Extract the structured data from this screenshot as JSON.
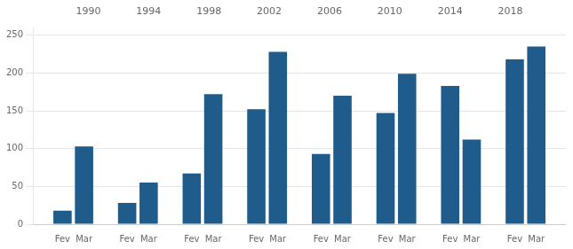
{
  "chart_data": {
    "type": "bar",
    "categories": [
      "Fev",
      "Mar",
      "Fev",
      "Mar",
      "Fev",
      "Mar",
      "Fev",
      "Mar",
      "Fev",
      "Mar",
      "Fev",
      "Mar",
      "Fev",
      "Mar",
      "Fev",
      "Mar"
    ],
    "values": [
      18,
      103,
      28,
      55,
      67,
      172,
      152,
      228,
      93,
      170,
      147,
      199,
      183,
      112,
      218,
      235
    ],
    "groups": [
      "1990",
      "1994",
      "1998",
      "2002",
      "2006",
      "2010",
      "2014",
      "2018"
    ],
    "color": "#1F5C8B",
    "ylim": [
      0,
      260
    ],
    "yticks": [
      0,
      50,
      100,
      150,
      200,
      250
    ],
    "grid": true
  }
}
